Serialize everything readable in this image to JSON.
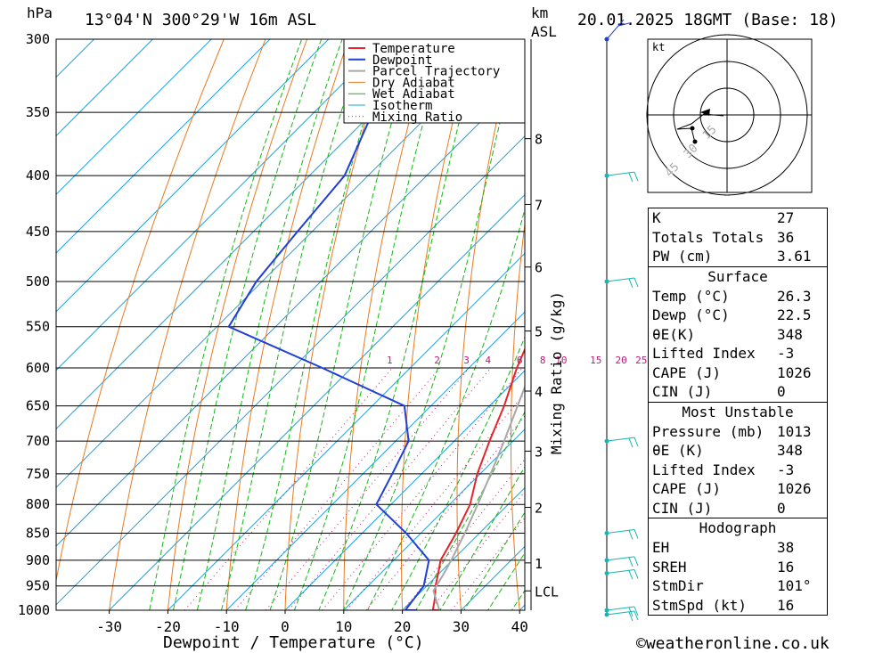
{
  "header": {
    "pressure_unit": "hPa",
    "location": "13°04'N  300°29'W  16m  ASL",
    "km_label": "km",
    "asl_label": "ASL",
    "datetime": "20.01.2025  18GMT  (Base: 18)"
  },
  "chart_data": {
    "type": "line",
    "title": "13°04'N  300°29'W  16m  ASL",
    "xlabel": "Dewpoint / Temperature (°C)",
    "ylabel": "hPa",
    "xlim": [
      -40,
      40
    ],
    "pressure_levels": [
      300,
      350,
      400,
      450,
      500,
      550,
      600,
      650,
      700,
      750,
      800,
      850,
      900,
      950,
      1000
    ],
    "x_ticks": [
      -30,
      -20,
      -10,
      0,
      10,
      20,
      30,
      40
    ],
    "km_ticks": [
      {
        "label": "8",
        "p": 370
      },
      {
        "label": "7",
        "p": 425
      },
      {
        "label": "6",
        "p": 485
      },
      {
        "label": "5",
        "p": 555
      },
      {
        "label": "4",
        "p": 630
      },
      {
        "label": "3",
        "p": 715
      },
      {
        "label": "2",
        "p": 805
      },
      {
        "label": "1",
        "p": 905
      },
      {
        "label": "LCL",
        "p": 960
      }
    ],
    "mixing_ratio_title": "Mixing Ratio (g/kg)",
    "mixing_ratio_labels": [
      "1",
      "2",
      "3",
      "4",
      "6",
      "8",
      "10",
      "15",
      "20",
      "25"
    ],
    "series": [
      {
        "name": "Temperature",
        "color": "#e8242a",
        "points": [
          [
            1013,
            26.3
          ],
          [
            1000,
            25.2
          ],
          [
            975,
            23.5
          ],
          [
            950,
            21.5
          ],
          [
            925,
            19.8
          ],
          [
            900,
            18.0
          ],
          [
            850,
            16.0
          ],
          [
            800,
            13.5
          ],
          [
            750,
            9.5
          ],
          [
            700,
            6.0
          ],
          [
            650,
            2.5
          ],
          [
            600,
            -1.8
          ],
          [
            550,
            -5.8
          ],
          [
            500,
            -10.5
          ],
          [
            450,
            -17.0
          ],
          [
            400,
            -24.5
          ],
          [
            375,
            -28.5
          ],
          [
            350,
            -33.5
          ],
          [
            325,
            -39.0
          ],
          [
            300,
            -44.0
          ]
        ]
      },
      {
        "name": "Dewpoint",
        "color": "#1f3fd8",
        "points": [
          [
            1013,
            22.5
          ],
          [
            1000,
            20.5
          ],
          [
            950,
            19.5
          ],
          [
            900,
            16.0
          ],
          [
            850,
            7.5
          ],
          [
            800,
            -2.5
          ],
          [
            750,
            -5.0
          ],
          [
            700,
            -7.8
          ],
          [
            650,
            -14.5
          ],
          [
            600,
            -35.0
          ],
          [
            550,
            -58.0
          ],
          [
            500,
            -61.0
          ],
          [
            450,
            -62.5
          ],
          [
            400,
            -64.0
          ],
          [
            350,
            -70.0
          ],
          [
            300,
            -72.0
          ]
        ]
      },
      {
        "name": "Parcel Trajectory",
        "color": "#a8a8a8",
        "points": [
          [
            1013,
            26.3
          ],
          [
            960,
            22.0
          ],
          [
            925,
            20.8
          ],
          [
            900,
            19.8
          ],
          [
            850,
            17.5
          ],
          [
            800,
            14.8
          ],
          [
            750,
            11.8
          ],
          [
            700,
            8.5
          ],
          [
            650,
            4.8
          ],
          [
            600,
            0.8
          ],
          [
            550,
            -4.0
          ],
          [
            500,
            -9.5
          ],
          [
            450,
            -15.8
          ],
          [
            400,
            -23.5
          ],
          [
            370,
            -29.0
          ]
        ]
      }
    ],
    "legend": [
      "Temperature",
      "Dewpoint",
      "Parcel Trajectory",
      "Dry Adiabat",
      "Wet Adiabat",
      "Isotherm",
      "Mixing Ratio"
    ],
    "legend_placement": "top-right",
    "colors": {
      "dry_adiabat": "#e87a1e",
      "wet_adiabat": "#17b517",
      "isotherm": "#1ea0e0",
      "mixing_ratio": "#c0187a",
      "wind_barb": "#17b5b5"
    },
    "wind_levels": [
      300,
      400,
      500,
      700,
      850,
      900,
      925,
      1000,
      1013
    ]
  },
  "hodograph": {
    "unit": "kt",
    "ring_labels": [
      "15",
      "30",
      "45"
    ]
  },
  "indices": {
    "top": [
      {
        "label": "K",
        "value": "27"
      },
      {
        "label": "Totals Totals",
        "value": "36"
      },
      {
        "label": "PW (cm)",
        "value": "3.61"
      }
    ],
    "surface": {
      "title": "Surface",
      "rows": [
        {
          "label": "Temp (°C)",
          "value": "26.3"
        },
        {
          "label": "Dewp (°C)",
          "value": "22.5"
        },
        {
          "label": "θE(K)",
          "value": "348"
        },
        {
          "label": "Lifted Index",
          "value": "-3"
        },
        {
          "label": "CAPE (J)",
          "value": "1026"
        },
        {
          "label": "CIN (J)",
          "value": "0"
        }
      ]
    },
    "most_unstable": {
      "title": "Most Unstable",
      "rows": [
        {
          "label": "Pressure (mb)",
          "value": "1013"
        },
        {
          "label": "θE (K)",
          "value": "348"
        },
        {
          "label": "Lifted Index",
          "value": "-3"
        },
        {
          "label": "CAPE (J)",
          "value": "1026"
        },
        {
          "label": "CIN (J)",
          "value": "0"
        }
      ]
    },
    "hodograph": {
      "title": "Hodograph",
      "rows": [
        {
          "label": "EH",
          "value": "38"
        },
        {
          "label": "SREH",
          "value": "16"
        },
        {
          "label": "StmDir",
          "value": "101°"
        },
        {
          "label": "StmSpd (kt)",
          "value": "16"
        }
      ]
    }
  },
  "footer": {
    "copyright": "©weatheronline.co.uk"
  }
}
